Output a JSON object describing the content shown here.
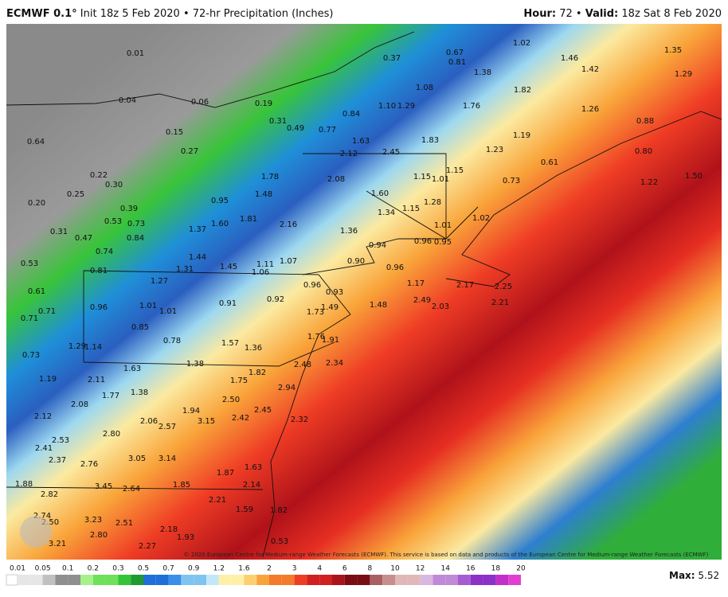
{
  "header": {
    "model": "ECMWF 0.1°",
    "description": "Init 18z 5 Feb 2020 • 72-hr Precipitation (Inches)",
    "hour_label": "Hour:",
    "hour": "72",
    "separator": "•",
    "valid_label": "Valid:",
    "valid": "18z Sat 8 Feb 2020"
  },
  "map_labels": [
    "0.01",
    "0.04",
    "0.06",
    "0.19",
    "0.37",
    "0.67",
    "0.81",
    "1.02",
    "1.35",
    "1.46",
    "1.42",
    "1.29",
    "1.38",
    "1.08",
    "1.82",
    "1.76",
    "1.26",
    "0.88",
    "0.84",
    "1.10",
    "1.29",
    "0.31",
    "0.49",
    "0.77",
    "0.15",
    "0.27",
    "0.64",
    "1.63",
    "1.83",
    "1.23",
    "1.19",
    "0.61",
    "0.80",
    "1.50",
    "1.22",
    "2.12",
    "2.45",
    "1.15",
    "1.15",
    "1.01",
    "0.73",
    "2.08",
    "1.78",
    "0.25",
    "0.20",
    "0.22",
    "0.30",
    "1.60",
    "1.28",
    "1.34",
    "1.15",
    "1.02",
    "0.95",
    "0.39",
    "1.48",
    "0.31",
    "0.47",
    "0.84",
    "0.73",
    "0.53",
    "1.37",
    "1.60",
    "1.81",
    "2.16",
    "1.36",
    "0.96",
    "0.95",
    "1.01",
    "0.94",
    "0.74",
    "0.53",
    "0.81",
    "1.44",
    "1.31",
    "1.45",
    "1.11",
    "1.06",
    "1.07",
    "0.90",
    "0.96",
    "1.27",
    "0.61",
    "0.71",
    "0.71",
    "0.96",
    "1.01",
    "1.01",
    "0.91",
    "0.92",
    "0.96",
    "0.93",
    "1.17",
    "2.17",
    "2.25",
    "2.49",
    "2.03",
    "2.21",
    "1.48",
    "1.73",
    "1.49",
    "0.85",
    "0.78",
    "1.57",
    "1.36",
    "1.76",
    "1.91",
    "0.73",
    "1.14",
    "1.29",
    "1.63",
    "1.38",
    "2.48",
    "2.34",
    "1.19",
    "2.11",
    "1.77",
    "1.38",
    "1.75",
    "1.82",
    "2.94",
    "2.08",
    "2.50",
    "1.94",
    "2.12",
    "2.06",
    "2.57",
    "3.15",
    "2.42",
    "2.45",
    "2.32",
    "2.80",
    "2.53",
    "2.41",
    "2.37",
    "2.76",
    "3.05",
    "3.14",
    "1.63",
    "1.87",
    "2.14",
    "1.88",
    "3.45",
    "2.64",
    "1.85",
    "2.82",
    "2.21",
    "1.59",
    "1.82",
    "2.74",
    "2.50",
    "3.23",
    "2.51",
    "2.18",
    "2.80",
    "1.93",
    "0.53",
    "3.21",
    "2.27"
  ],
  "copyright": "© 2020 European Centre for Medium-range Weather Forecasts (ECMWF). This service is based on data and products of the European Centre for Medium-range Weather Forecasts (ECMWF)",
  "legend": {
    "ticks": [
      "0.01",
      "0.05",
      "0.1",
      "0.2",
      "0.3",
      "0.5",
      "0.7",
      "0.9",
      "1.2",
      "1.6",
      "2",
      "3",
      "4",
      "6",
      "8",
      "10",
      "12",
      "14",
      "16",
      "18",
      "20"
    ]
  },
  "max_label": "Max:",
  "max_value": "5.52"
}
